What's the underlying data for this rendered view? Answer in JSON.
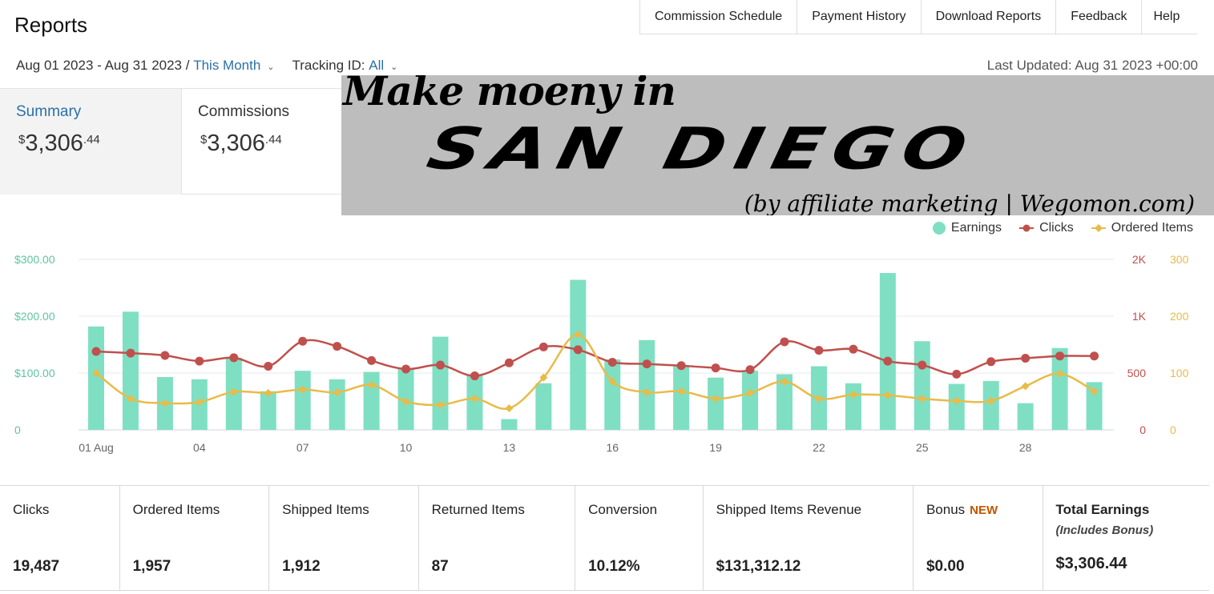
{
  "header": {
    "title": "Reports"
  },
  "topnav": [
    "Commission Schedule",
    "Payment History",
    "Download Reports",
    "Feedback",
    "Help"
  ],
  "date_filter": {
    "range": "Aug 01 2023 - Aug 31 2023 /",
    "preset": "This Month",
    "tracking_label": "Tracking ID:",
    "tracking_value": "All",
    "last_updated": "Last Updated: Aug 31 2023 +00:00"
  },
  "tabs": {
    "summary": {
      "label": "Summary",
      "currency": "$",
      "whole": "3,306",
      "cents": ".44"
    },
    "commissions": {
      "label": "Commissions",
      "currency": "$",
      "whole": "3,306",
      "cents": ".44"
    }
  },
  "banner": {
    "line1": "Make moeny in",
    "line2": "SAN DIEGO",
    "line3": "(by affiliate marketing | Wegomon.com)"
  },
  "legend": {
    "earnings": "Earnings",
    "clicks": "Clicks",
    "ordered": "Ordered Items"
  },
  "colors": {
    "earnings": "#7fdfc3",
    "clicks": "#c0504d",
    "ordered": "#e8bb4a",
    "link": "#2a6fa8",
    "new_badge": "#c45500"
  },
  "chart_data": {
    "type": "bar",
    "x": [
      "01 Aug",
      "02",
      "03",
      "04",
      "05",
      "06",
      "07",
      "08",
      "09",
      "10",
      "11",
      "12",
      "13",
      "14",
      "15",
      "16",
      "17",
      "18",
      "19",
      "20",
      "21",
      "22",
      "23",
      "24",
      "25",
      "26",
      "27",
      "28",
      "29",
      "30",
      "31"
    ],
    "x_tick_labels": [
      "01 Aug",
      "04",
      "07",
      "10",
      "13",
      "16",
      "19",
      "22",
      "25",
      "28"
    ],
    "y_left_ticks": [
      "$300.00",
      "$200.00",
      "$100.00",
      "0"
    ],
    "y_right_clicks_ticks": [
      "2K",
      "1K",
      "500",
      "0"
    ],
    "y_right_items_ticks": [
      "300",
      "200",
      "100",
      "0"
    ],
    "ylim_earnings": [
      0,
      300
    ],
    "ylim_clicks": [
      0,
      1500
    ],
    "ylim_items": [
      0,
      300
    ],
    "series": [
      {
        "name": "Earnings",
        "type": "bar",
        "axis": "left",
        "values": [
          182,
          208,
          93,
          89,
          127,
          68,
          104,
          89,
          102,
          107,
          164,
          98,
          19,
          82,
          264,
          124,
          158,
          112,
          92,
          104,
          98,
          112,
          82,
          276,
          156,
          81,
          86,
          47,
          144,
          84,
          0
        ]
      },
      {
        "name": "Clicks",
        "type": "line",
        "axis": "clicks",
        "values": [
          690,
          675,
          655,
          605,
          635,
          560,
          780,
          735,
          610,
          535,
          570,
          475,
          590,
          730,
          705,
          595,
          580,
          565,
          545,
          530,
          775,
          700,
          710,
          605,
          570,
          490,
          600,
          630,
          650,
          650,
          null
        ]
      },
      {
        "name": "Ordered Items",
        "type": "line",
        "axis": "items",
        "values": [
          100,
          55,
          47,
          49,
          67,
          65,
          71,
          66,
          79,
          50,
          44,
          55,
          38,
          92,
          168,
          85,
          66,
          68,
          55,
          65,
          85,
          55,
          62,
          61,
          55,
          51,
          51,
          77,
          99,
          68,
          null
        ]
      }
    ]
  },
  "stats": [
    {
      "label": "Clicks",
      "value": "19,487"
    },
    {
      "label": "Ordered Items",
      "value": "1,957"
    },
    {
      "label": "Shipped Items",
      "value": "1,912"
    },
    {
      "label": "Returned Items",
      "value": "87"
    },
    {
      "label": "Conversion",
      "value": "10.12%"
    },
    {
      "label": "Shipped Items Revenue",
      "value": "$131,312.12"
    },
    {
      "label": "Bonus",
      "badge": "NEW",
      "value": "$0.00"
    },
    {
      "label": "Total Earnings",
      "sub": "(Includes Bonus)",
      "value": "$3,306.44"
    }
  ]
}
